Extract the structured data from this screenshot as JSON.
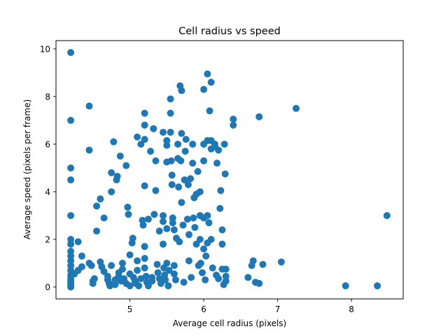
{
  "chart_data": {
    "type": "scatter",
    "title": "Cell radius vs speed",
    "xlabel": "Average cell radius (pixels)",
    "ylabel": "Average speed (pixels per frame)",
    "xlim": [
      4.0,
      8.7
    ],
    "ylim": [
      -0.5,
      10.35
    ],
    "x_ticks": [
      5,
      6,
      7,
      8
    ],
    "x_tick_labels": [
      "5",
      "6",
      "7",
      "8"
    ],
    "y_ticks": [
      0,
      2,
      4,
      6,
      8,
      10
    ],
    "y_tick_labels": [
      "0",
      "2",
      "4",
      "6",
      "8",
      "10"
    ],
    "grid": false,
    "legend": "none",
    "marker_color": "#1f77b4",
    "series": [
      {
        "points": [
          [
            4.2,
            9.85
          ],
          [
            4.2,
            7.0
          ],
          [
            4.2,
            5.0
          ],
          [
            4.2,
            4.5
          ],
          [
            4.2,
            3.0
          ],
          [
            4.2,
            2.0
          ],
          [
            4.2,
            1.8
          ],
          [
            4.2,
            1.5
          ],
          [
            4.2,
            1.3
          ],
          [
            4.2,
            1.1
          ],
          [
            4.2,
            0.9
          ],
          [
            4.2,
            0.7
          ],
          [
            4.2,
            0.5
          ],
          [
            4.2,
            0.35
          ],
          [
            4.2,
            0.25
          ],
          [
            4.2,
            0.15
          ],
          [
            4.2,
            0.05
          ],
          [
            4.2,
            0.0
          ],
          [
            4.25,
            0.55
          ],
          [
            4.3,
            0.7
          ],
          [
            4.3,
            1.9
          ],
          [
            4.35,
            1.3
          ],
          [
            4.35,
            0.85
          ],
          [
            4.45,
            1.0
          ],
          [
            4.48,
            0.9
          ],
          [
            4.45,
            7.6
          ],
          [
            4.45,
            5.75
          ],
          [
            4.5,
            0.25
          ],
          [
            4.5,
            0.15
          ],
          [
            4.52,
            0.35
          ],
          [
            4.55,
            3.4
          ],
          [
            4.55,
            2.35
          ],
          [
            4.6,
            3.7
          ],
          [
            4.6,
            1.05
          ],
          [
            4.62,
            0.85
          ],
          [
            4.65,
            0.65
          ],
          [
            4.65,
            2.9
          ],
          [
            4.7,
            0.45
          ],
          [
            4.7,
            0.3
          ],
          [
            4.72,
            0.15
          ],
          [
            4.73,
            0.05
          ],
          [
            4.75,
            4.0
          ],
          [
            4.75,
            4.8
          ],
          [
            4.75,
            0.9
          ],
          [
            4.78,
            6.1
          ],
          [
            4.8,
            0.1
          ],
          [
            4.8,
            0.3
          ],
          [
            4.82,
            4.5
          ],
          [
            4.83,
            4.65
          ],
          [
            4.85,
            0.45
          ],
          [
            4.85,
            0.6
          ],
          [
            4.87,
            5.5
          ],
          [
            4.88,
            0.25
          ],
          [
            4.9,
            0.75
          ],
          [
            4.9,
            1.0
          ],
          [
            4.92,
            0.35
          ],
          [
            4.95,
            5.1
          ],
          [
            4.95,
            0.15
          ],
          [
            4.97,
            3.35
          ],
          [
            4.98,
            3.05
          ],
          [
            5.0,
            1.35
          ],
          [
            5.0,
            0.55
          ],
          [
            5.0,
            0.05
          ],
          [
            5.03,
            1.85
          ],
          [
            5.04,
            2.05
          ],
          [
            5.05,
            0.4
          ],
          [
            5.07,
            0.25
          ],
          [
            5.08,
            0.15
          ],
          [
            5.1,
            6.3
          ],
          [
            5.1,
            1.1
          ],
          [
            5.1,
            0.7
          ],
          [
            5.12,
            0.05
          ],
          [
            5.15,
            6.0
          ],
          [
            5.15,
            0.35
          ],
          [
            5.17,
            2.8
          ],
          [
            5.18,
            2.6
          ],
          [
            5.2,
            7.3
          ],
          [
            5.2,
            6.8
          ],
          [
            5.2,
            6.2
          ],
          [
            5.2,
            4.25
          ],
          [
            5.2,
            1.7
          ],
          [
            5.2,
            1.2
          ],
          [
            5.2,
            0.8
          ],
          [
            5.22,
            0.45
          ],
          [
            5.23,
            0.2
          ],
          [
            5.25,
            0.05
          ],
          [
            5.25,
            2.85
          ],
          [
            5.28,
            5.7
          ],
          [
            5.3,
            0.4
          ],
          [
            5.3,
            0.25
          ],
          [
            5.32,
            6.65
          ],
          [
            5.33,
            3.05
          ],
          [
            5.35,
            4.05
          ],
          [
            5.35,
            5.3
          ],
          [
            5.37,
            0.95
          ],
          [
            5.38,
            0.6
          ],
          [
            5.4,
            2.35
          ],
          [
            5.4,
            0.35
          ],
          [
            5.42,
            0.15
          ],
          [
            5.45,
            6.5
          ],
          [
            5.45,
            3.0
          ],
          [
            5.45,
            2.75
          ],
          [
            5.45,
            1.8
          ],
          [
            5.46,
            0.8
          ],
          [
            5.47,
            0.5
          ],
          [
            5.48,
            0.3
          ],
          [
            5.5,
            6.15
          ],
          [
            5.5,
            5.95
          ],
          [
            5.5,
            5.25
          ],
          [
            5.5,
            2.45
          ],
          [
            5.5,
            1.0
          ],
          [
            5.52,
            0.05
          ],
          [
            5.53,
            0.7
          ],
          [
            5.55,
            7.9
          ],
          [
            5.55,
            7.3
          ],
          [
            5.55,
            6.5
          ],
          [
            5.56,
            5.3
          ],
          [
            5.57,
            4.7
          ],
          [
            5.57,
            4.3
          ],
          [
            5.58,
            2.9
          ],
          [
            5.58,
            2.7
          ],
          [
            5.6,
            2.4
          ],
          [
            5.6,
            0.9
          ],
          [
            5.6,
            0.55
          ],
          [
            5.62,
            0.3
          ],
          [
            5.63,
            2.05
          ],
          [
            5.65,
            6.0
          ],
          [
            5.65,
            5.4
          ],
          [
            5.66,
            4.2
          ],
          [
            5.67,
            1.9
          ],
          [
            5.68,
            8.45
          ],
          [
            5.69,
            5.3
          ],
          [
            5.7,
            8.25
          ],
          [
            5.7,
            6.45
          ],
          [
            5.7,
            3.55
          ],
          [
            5.72,
            2.6
          ],
          [
            5.73,
            0.2
          ],
          [
            5.74,
            4.5
          ],
          [
            5.75,
            5.7
          ],
          [
            5.76,
            6.2
          ],
          [
            5.78,
            2.85
          ],
          [
            5.79,
            4.3
          ],
          [
            5.8,
            2.2
          ],
          [
            5.8,
            1.1
          ],
          [
            5.82,
            4.55
          ],
          [
            5.83,
            0.4
          ],
          [
            5.85,
            6.0
          ],
          [
            5.85,
            5.2
          ],
          [
            5.86,
            2.9
          ],
          [
            5.87,
            3.75
          ],
          [
            5.88,
            2.5
          ],
          [
            5.9,
            3.9
          ],
          [
            5.9,
            1.8
          ],
          [
            5.92,
            4.85
          ],
          [
            5.93,
            0.9
          ],
          [
            5.95,
            4.0
          ],
          [
            5.95,
            3.0
          ],
          [
            5.95,
            2.0
          ],
          [
            5.96,
            1.0
          ],
          [
            5.98,
            0.6
          ],
          [
            6.0,
            8.3
          ],
          [
            6.0,
            6.0
          ],
          [
            6.0,
            5.3
          ],
          [
            6.0,
            2.9
          ],
          [
            6.0,
            1.6
          ],
          [
            6.02,
            0.3
          ],
          [
            6.03,
            1.3
          ],
          [
            6.05,
            8.95
          ],
          [
            6.05,
            6.15
          ],
          [
            6.05,
            3.0
          ],
          [
            6.05,
            1.85
          ],
          [
            6.07,
            2.7
          ],
          [
            6.08,
            7.4
          ],
          [
            6.1,
            8.6
          ],
          [
            6.1,
            6.15
          ],
          [
            6.1,
            5.8
          ],
          [
            6.1,
            2.0
          ],
          [
            6.12,
            0.8
          ],
          [
            6.15,
            6.0
          ],
          [
            6.15,
            5.9
          ],
          [
            6.17,
            0.5
          ],
          [
            6.18,
            5.2
          ],
          [
            6.2,
            5.75
          ],
          [
            6.2,
            0.35
          ],
          [
            6.22,
            3.3
          ],
          [
            6.23,
            4.05
          ],
          [
            6.25,
            2.4
          ],
          [
            6.25,
            1.8
          ],
          [
            6.25,
            0.75
          ],
          [
            6.27,
            0.1
          ],
          [
            6.28,
            6.0
          ],
          [
            6.29,
            4.75
          ],
          [
            6.3,
            0.75
          ],
          [
            6.3,
            0.45
          ],
          [
            6.3,
            0.25
          ],
          [
            6.4,
            7.05
          ],
          [
            6.4,
            6.8
          ],
          [
            6.6,
            0.4
          ],
          [
            6.65,
            0.9
          ],
          [
            6.67,
            1.1
          ],
          [
            6.7,
            0.2
          ],
          [
            6.75,
            0.15
          ],
          [
            6.75,
            7.15
          ],
          [
            6.8,
            0.95
          ],
          [
            7.05,
            1.05
          ],
          [
            7.25,
            7.5
          ],
          [
            7.92,
            0.05
          ],
          [
            8.35,
            0.05
          ],
          [
            8.48,
            3.0
          ]
        ]
      }
    ]
  }
}
